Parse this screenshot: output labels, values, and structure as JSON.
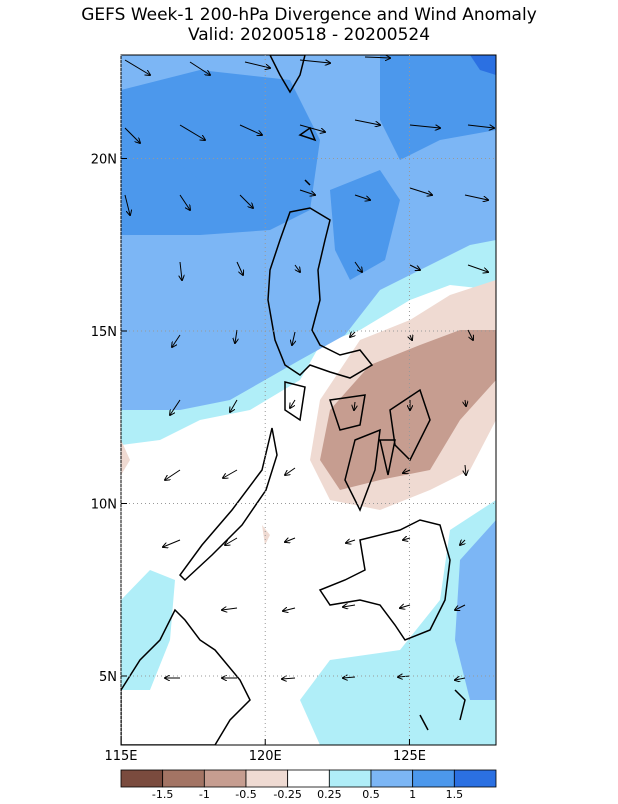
{
  "chart_data": {
    "type": "map",
    "title": "GEFS Week-1 200-hPa Divergence and Wind Anomaly",
    "subtitle": "Valid: 20200518 - 20200524",
    "xlim": [
      115,
      128
    ],
    "ylim": [
      3,
      23
    ],
    "xticks": [
      {
        "value": 115,
        "label": "115E"
      },
      {
        "value": 120,
        "label": "120E"
      },
      {
        "value": 125,
        "label": "125E"
      }
    ],
    "yticks": [
      {
        "value": 5,
        "label": "5N"
      },
      {
        "value": 10,
        "label": "10N"
      },
      {
        "value": 15,
        "label": "15N"
      },
      {
        "value": 20,
        "label": "20N"
      }
    ],
    "grid": true,
    "colorbar": {
      "colors": [
        "#7a4b3e",
        "#a37464",
        "#c69d90",
        "#efdad2",
        "#ffffff",
        "#b0eef8",
        "#7cb6f5",
        "#4c98ec",
        "#2b70e2"
      ],
      "levels": [
        "-1.5",
        "-1",
        "-0.5",
        "-0.25",
        "0.25",
        "0.5",
        "1",
        "1.5"
      ]
    }
  }
}
